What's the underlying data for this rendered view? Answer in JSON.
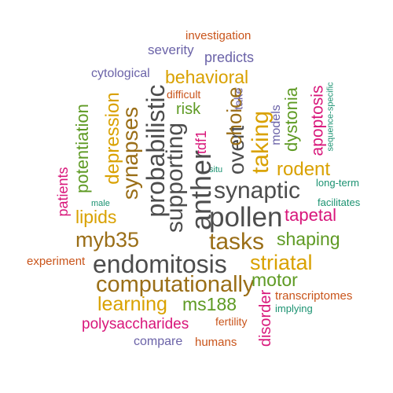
{
  "palette": {
    "gray": "#4d4d4d",
    "orange": "#c9541a",
    "purple": "#6b63a8",
    "pink": "#d8167a",
    "green": "#5e9a23",
    "gold": "#d9a100",
    "brown": "#9a6e17",
    "teal": "#1b9271"
  },
  "words": [
    "investigation",
    "severity",
    "predicts",
    "cytological",
    "behavioral",
    "difficult",
    "risk",
    "take",
    "tdf1",
    "models",
    "dystonia",
    "apoptosis",
    "sequence-specific",
    "potentiation",
    "depression",
    "synapses",
    "probabilistic",
    "supporting",
    "anther",
    "overt",
    "choice",
    "taking",
    "rodent",
    "synaptic",
    "situ",
    "long-term",
    "patients",
    "male",
    "facilitates",
    "lipids",
    "pollen",
    "tapetal",
    "myb35",
    "tasks",
    "shaping",
    "experiment",
    "endomitosis",
    "striatal",
    "computationally",
    "motor",
    "learning",
    "ms188",
    "disorder",
    "transcriptomes",
    "implying",
    "polysaccharides",
    "fertility",
    "compare",
    "humans"
  ]
}
